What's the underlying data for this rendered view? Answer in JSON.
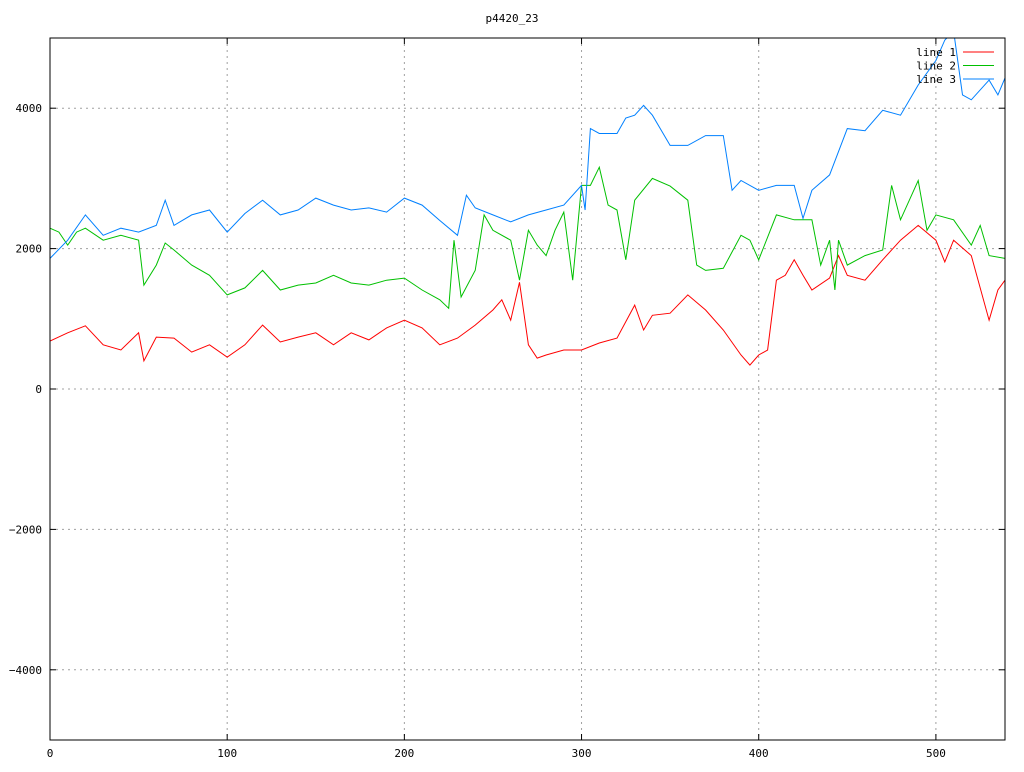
{
  "chart_data": {
    "type": "line",
    "title": "p4420_23",
    "xlabel": "",
    "ylabel": "",
    "xlim": [
      0,
      539
    ],
    "ylim": [
      -5000,
      5000
    ],
    "xticks": [
      0,
      100,
      200,
      300,
      400,
      500
    ],
    "yticks": [
      -4000,
      -2000,
      0,
      2000,
      4000
    ],
    "grid": true,
    "legend_position": "top-right",
    "series": [
      {
        "name": "line 1",
        "color": "#ff0000",
        "x": [
          0,
          10,
          20,
          30,
          40,
          50,
          53,
          60,
          70,
          80,
          90,
          100,
          110,
          120,
          130,
          140,
          150,
          160,
          170,
          180,
          190,
          200,
          210,
          220,
          230,
          240,
          250,
          255,
          260,
          265,
          270,
          275,
          280,
          290,
          300,
          310,
          320,
          330,
          335,
          340,
          350,
          360,
          370,
          380,
          390,
          395,
          400,
          405,
          410,
          415,
          420,
          425,
          430,
          440,
          445,
          450,
          460,
          470,
          480,
          490,
          500,
          505,
          510,
          520,
          530,
          535,
          539
        ],
        "y": [
          683,
          800,
          900,
          630,
          555,
          800,
          400,
          740,
          725,
          525,
          630,
          455,
          630,
          910,
          670,
          740,
          800,
          630,
          800,
          700,
          870,
          980,
          870,
          630,
          725,
          910,
          1125,
          1270,
          980,
          1520,
          630,
          440,
          485,
          555,
          555,
          655,
          725,
          1195,
          840,
          1050,
          1080,
          1340,
          1125,
          840,
          485,
          340,
          485,
          555,
          1550,
          1620,
          1840,
          1620,
          1410,
          1580,
          1900,
          1620,
          1550,
          1840,
          2120,
          2330,
          2120,
          1810,
          2120,
          1900,
          980,
          1410,
          1550
        ]
      },
      {
        "name": "line 2",
        "color": "#00c000",
        "x": [
          0,
          5,
          10,
          15,
          20,
          30,
          40,
          50,
          53,
          60,
          65,
          70,
          80,
          90,
          100,
          110,
          120,
          130,
          140,
          150,
          160,
          170,
          180,
          190,
          200,
          210,
          220,
          225,
          228,
          232,
          240,
          245,
          250,
          260,
          265,
          270,
          275,
          280,
          285,
          290,
          295,
          300,
          305,
          310,
          315,
          320,
          325,
          330,
          340,
          350,
          360,
          365,
          370,
          380,
          390,
          395,
          400,
          410,
          420,
          430,
          435,
          440,
          443,
          445,
          450,
          460,
          470,
          475,
          480,
          490,
          495,
          500,
          510,
          520,
          525,
          530,
          539
        ],
        "y": [
          2290,
          2235,
          2050,
          2235,
          2290,
          2120,
          2190,
          2120,
          1480,
          1765,
          2080,
          1980,
          1765,
          1620,
          1340,
          1440,
          1690,
          1410,
          1480,
          1510,
          1620,
          1510,
          1480,
          1550,
          1580,
          1410,
          1270,
          1150,
          2120,
          1310,
          1690,
          2480,
          2260,
          2120,
          1550,
          2260,
          2050,
          1900,
          2260,
          2520,
          1550,
          2900,
          2900,
          3160,
          2620,
          2550,
          1840,
          2690,
          3000,
          2890,
          2690,
          1765,
          1690,
          1720,
          2190,
          2120,
          1840,
          2480,
          2410,
          2410,
          1765,
          2120,
          1410,
          2120,
          1765,
          1900,
          1980,
          2900,
          2410,
          2970,
          2260,
          2480,
          2410,
          2050,
          2330,
          1900,
          1860
        ]
      },
      {
        "name": "line 3",
        "color": "#0080ff",
        "x": [
          0,
          10,
          20,
          30,
          40,
          50,
          60,
          65,
          70,
          80,
          90,
          100,
          110,
          120,
          130,
          140,
          150,
          160,
          170,
          180,
          190,
          200,
          210,
          220,
          230,
          235,
          240,
          250,
          260,
          270,
          280,
          290,
          300,
          302,
          305,
          310,
          320,
          325,
          330,
          335,
          340,
          350,
          360,
          370,
          380,
          385,
          390,
          400,
          410,
          420,
          425,
          430,
          440,
          450,
          460,
          470,
          480,
          490,
          500,
          505,
          510,
          515,
          520,
          530,
          535,
          539
        ],
        "y": [
          1860,
          2120,
          2480,
          2190,
          2290,
          2235,
          2330,
          2690,
          2330,
          2480,
          2550,
          2235,
          2500,
          2690,
          2480,
          2550,
          2720,
          2620,
          2550,
          2580,
          2520,
          2720,
          2620,
          2400,
          2190,
          2760,
          2580,
          2480,
          2380,
          2480,
          2550,
          2620,
          2900,
          2550,
          3710,
          3640,
          3640,
          3860,
          3900,
          4040,
          3900,
          3470,
          3470,
          3610,
          3610,
          2830,
          2970,
          2830,
          2900,
          2900,
          2430,
          2830,
          3050,
          3710,
          3680,
          3970,
          3900,
          4330,
          4680,
          4970,
          5100,
          4190,
          4120,
          4400,
          4190,
          4430
        ]
      }
    ]
  }
}
